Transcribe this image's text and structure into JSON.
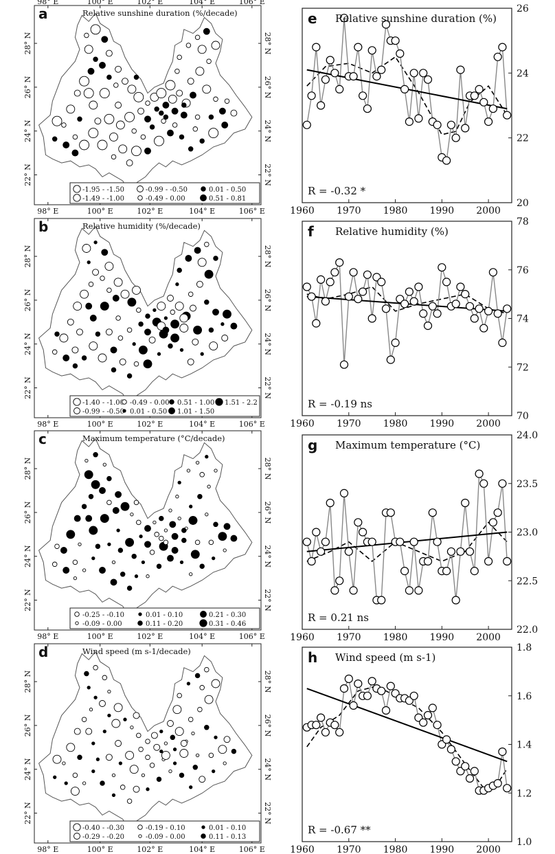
{
  "map_axes": {
    "lon_ticks": [
      "98° E",
      "100° E",
      "102° E",
      "104° E",
      "106° E"
    ],
    "lat_ticks": [
      "22° N",
      "24° N",
      "26° N",
      "28° N"
    ]
  },
  "map_panels": [
    {
      "letter": "a",
      "title": "Relative sunshine duration (%/decade)",
      "legend": [
        [
          "-1.95 - -1.50",
          "-0.99 - -0.50",
          "0.01 - 0.50"
        ],
        [
          "-1.49 - -1.00",
          "-0.49 - 0.00",
          "0.51 - 0.81"
        ]
      ],
      "symbols": [
        [
          {
            "fill": "open",
            "size": 5
          },
          {
            "fill": "open",
            "size": 3
          },
          {
            "fill": "solid",
            "size": 2
          }
        ],
        [
          {
            "fill": "open",
            "size": 4
          },
          {
            "fill": "open",
            "size": 2
          },
          {
            "fill": "solid",
            "size": 3
          }
        ]
      ]
    },
    {
      "letter": "b",
      "title": "Relative humidity (%/decade)",
      "legend": [
        [
          "-1.40 - -1.00",
          "-0.49 - 0.00",
          "0.51 - 1.00",
          "1.51 - 2.2"
        ],
        [
          "-0.99 - -0.50",
          "0.01 - 0.50",
          "1.01 - 1.50"
        ]
      ],
      "symbols": [
        [
          {
            "fill": "open",
            "size": 4
          },
          {
            "fill": "open",
            "size": 2
          },
          {
            "fill": "solid",
            "size": 2
          },
          {
            "fill": "solid",
            "size": 4
          }
        ],
        [
          {
            "fill": "open",
            "size": 3
          },
          {
            "fill": "solid",
            "size": 1
          },
          {
            "fill": "solid",
            "size": 3
          }
        ]
      ]
    },
    {
      "letter": "c",
      "title": "Maximum temperature (°C/decade)",
      "legend": [
        [
          "-0.25 - -0.10",
          "0.01 - 0.10",
          "0.21 - 0.30"
        ],
        [
          "-0.09 - 0.00",
          "0.11 - 0.20",
          "0.31 - 0.46"
        ]
      ],
      "symbols": [
        [
          {
            "fill": "open",
            "size": 2
          },
          {
            "fill": "solid",
            "size": 1
          },
          {
            "fill": "solid",
            "size": 3
          }
        ],
        [
          {
            "fill": "open",
            "size": 1
          },
          {
            "fill": "solid",
            "size": 2
          },
          {
            "fill": "solid",
            "size": 4
          }
        ]
      ]
    },
    {
      "letter": "d",
      "title": "Wind speed (m s-1/decade)",
      "legend": [
        [
          "-0.40 - -0.30",
          "-0.19 - 0.10",
          "0.01 - 0.10"
        ],
        [
          "-0.29 - -0.20",
          "-0.09 - 0.00",
          "0.11 - 0.13"
        ]
      ],
      "symbols": [
        [
          {
            "fill": "open",
            "size": 4
          },
          {
            "fill": "open",
            "size": 2
          },
          {
            "fill": "solid",
            "size": 1
          }
        ],
        [
          {
            "fill": "open",
            "size": 3
          },
          {
            "fill": "open",
            "size": 1
          },
          {
            "fill": "solid",
            "size": 2
          }
        ]
      ]
    }
  ],
  "chart_data": [
    {
      "panel": "e",
      "type": "line",
      "title": "Relative sunshine duration (%)",
      "xlim": [
        1960,
        2005
      ],
      "ylim": [
        20,
        26
      ],
      "xticks": [
        1960,
        1970,
        1980,
        1990,
        2000
      ],
      "yticks": [
        20,
        22,
        24,
        26
      ],
      "r_text": "R = -0.32 *",
      "x": [
        1961,
        1962,
        1963,
        1964,
        1965,
        1966,
        1967,
        1968,
        1969,
        1970,
        1971,
        1972,
        1973,
        1974,
        1975,
        1976,
        1977,
        1978,
        1979,
        1980,
        1981,
        1982,
        1983,
        1984,
        1985,
        1986,
        1987,
        1988,
        1989,
        1990,
        1991,
        1992,
        1993,
        1994,
        1995,
        1996,
        1997,
        1998,
        1999,
        2000,
        2001,
        2002,
        2003,
        2004
      ],
      "series": [
        {
          "values": [
            22.4,
            23.3,
            24.8,
            23.0,
            23.8,
            24.4,
            24.0,
            23.5,
            25.7,
            23.9,
            23.9,
            24.8,
            23.3,
            22.9,
            24.7,
            23.9,
            24.1,
            25.5,
            25.0,
            25.0,
            24.6,
            23.5,
            22.5,
            24.0,
            22.6,
            24.0,
            23.8,
            22.5,
            22.4,
            21.4,
            21.3,
            22.4,
            22.0,
            24.1,
            22.3,
            23.3,
            23.3,
            23.5,
            23.1,
            22.5,
            22.9,
            24.5,
            24.8,
            22.7
          ]
        }
      ],
      "trend": {
        "x": [
          1961,
          2004
        ],
        "y": [
          24.1,
          22.9
        ]
      },
      "smooth": {
        "x": [
          1961,
          1965,
          1970,
          1975,
          1980,
          1985,
          1990,
          1993,
          1996,
          2000,
          2004
        ],
        "y": [
          23.6,
          24.2,
          24.3,
          24.0,
          24.5,
          23.4,
          22.1,
          22.2,
          23.1,
          23.6,
          22.7
        ]
      }
    },
    {
      "panel": "f",
      "type": "line",
      "title": "Relative humidity (%)",
      "xlim": [
        1960,
        2005
      ],
      "ylim": [
        70,
        78
      ],
      "xticks": [
        1960,
        1970,
        1980,
        1990,
        2000
      ],
      "yticks": [
        70,
        72,
        74,
        76,
        78
      ],
      "r_text": "R = -0.19 ns",
      "x": [
        1961,
        1962,
        1963,
        1964,
        1965,
        1966,
        1967,
        1968,
        1969,
        1970,
        1971,
        1972,
        1973,
        1974,
        1975,
        1976,
        1977,
        1978,
        1979,
        1980,
        1981,
        1982,
        1983,
        1984,
        1985,
        1986,
        1987,
        1988,
        1989,
        1990,
        1991,
        1992,
        1993,
        1994,
        1995,
        1996,
        1997,
        1998,
        1999,
        2000,
        2001,
        2002,
        2003,
        2004
      ],
      "series": [
        {
          "values": [
            75.3,
            74.9,
            73.8,
            75.6,
            74.7,
            75.5,
            75.9,
            76.3,
            72.1,
            74.9,
            75.9,
            74.8,
            75.1,
            75.8,
            74.0,
            75.7,
            75.5,
            74.4,
            72.3,
            73.0,
            74.8,
            74.6,
            75.1,
            74.7,
            75.3,
            74.2,
            73.7,
            74.5,
            74.2,
            76.1,
            75.5,
            74.5,
            74.6,
            75.3,
            75.0,
            74.5,
            74.0,
            74.4,
            73.6,
            74.3,
            75.9,
            74.2,
            73.0,
            74.4
          ]
        }
      ],
      "trend": {
        "x": [
          1961,
          2004
        ],
        "y": [
          74.9,
          74.3
        ]
      },
      "smooth": {
        "x": [
          1961,
          1965,
          1970,
          1975,
          1980,
          1985,
          1990,
          1995,
          2000,
          2004
        ],
        "y": [
          75.0,
          74.8,
          75.0,
          75.3,
          74.3,
          74.6,
          74.8,
          75.0,
          74.4,
          74.2
        ]
      }
    },
    {
      "panel": "g",
      "type": "line",
      "title": "Maximum temperature (°C)",
      "xlim": [
        1960,
        2005
      ],
      "ylim": [
        22.0,
        24.0
      ],
      "xticks": [
        1960,
        1970,
        1980,
        1990,
        2000
      ],
      "yticks": [
        22.0,
        22.5,
        23.0,
        23.5,
        24.0
      ],
      "r_text": "R = 0.21 ns",
      "x": [
        1961,
        1962,
        1963,
        1964,
        1965,
        1966,
        1967,
        1968,
        1969,
        1970,
        1971,
        1972,
        1973,
        1974,
        1975,
        1976,
        1977,
        1978,
        1979,
        1980,
        1981,
        1982,
        1983,
        1984,
        1985,
        1986,
        1987,
        1988,
        1989,
        1990,
        1991,
        1992,
        1993,
        1994,
        1995,
        1996,
        1997,
        1998,
        1999,
        2000,
        2001,
        2002,
        2003,
        2004
      ],
      "series": [
        {
          "values": [
            22.9,
            22.7,
            23.0,
            22.8,
            22.9,
            23.3,
            22.4,
            22.5,
            23.4,
            22.8,
            22.4,
            23.1,
            23.0,
            22.9,
            22.9,
            22.3,
            22.3,
            23.2,
            23.2,
            22.9,
            22.9,
            22.6,
            22.4,
            22.9,
            22.4,
            22.7,
            22.7,
            23.2,
            22.9,
            22.6,
            22.6,
            22.8,
            22.3,
            22.8,
            23.3,
            22.8,
            22.6,
            23.6,
            23.5,
            22.7,
            23.1,
            23.2,
            23.5,
            22.7
          ]
        }
      ],
      "trend": {
        "x": [
          1961,
          2004
        ],
        "y": [
          22.8,
          23.0
        ]
      },
      "smooth": {
        "x": [
          1961,
          1966,
          1970,
          1975,
          1980,
          1985,
          1990,
          1995,
          2000,
          2004
        ],
        "y": [
          22.7,
          22.8,
          22.9,
          22.7,
          22.9,
          22.8,
          22.7,
          22.8,
          23.1,
          22.9
        ]
      }
    },
    {
      "panel": "h",
      "type": "line",
      "title": "Wind speed (m s-1)",
      "xlim": [
        1960,
        2005
      ],
      "ylim": [
        1.0,
        1.8
      ],
      "xticks": [
        1960,
        1970,
        1980,
        1990,
        2000
      ],
      "yticks": [
        1.0,
        1.2,
        1.4,
        1.6,
        1.8
      ],
      "r_text": "R = -0.67 **",
      "x": [
        1961,
        1962,
        1963,
        1964,
        1965,
        1966,
        1967,
        1968,
        1969,
        1970,
        1971,
        1972,
        1973,
        1974,
        1975,
        1976,
        1977,
        1978,
        1979,
        1980,
        1981,
        1982,
        1983,
        1984,
        1985,
        1986,
        1987,
        1988,
        1989,
        1990,
        1991,
        1992,
        1993,
        1994,
        1995,
        1996,
        1997,
        1998,
        1999,
        2000,
        2001,
        2002,
        2003,
        2004
      ],
      "series": [
        {
          "values": [
            1.47,
            1.48,
            1.48,
            1.51,
            1.45,
            1.49,
            1.48,
            1.45,
            1.63,
            1.67,
            1.56,
            1.65,
            1.6,
            1.6,
            1.66,
            1.63,
            1.62,
            1.54,
            1.64,
            1.61,
            1.59,
            1.59,
            1.58,
            1.6,
            1.51,
            1.49,
            1.52,
            1.55,
            1.48,
            1.4,
            1.42,
            1.38,
            1.33,
            1.29,
            1.31,
            1.26,
            1.29,
            1.21,
            1.21,
            1.22,
            1.23,
            1.24,
            1.37,
            1.22
          ]
        }
      ],
      "trend": {
        "x": [
          1961,
          2004
        ],
        "y": [
          1.63,
          1.33
        ]
      },
      "smooth": {
        "x": [
          1961,
          1964,
          1968,
          1972,
          1976,
          1980,
          1985,
          1990,
          1995,
          1999,
          2002,
          2004
        ],
        "y": [
          1.39,
          1.47,
          1.52,
          1.62,
          1.64,
          1.6,
          1.55,
          1.45,
          1.32,
          1.22,
          1.24,
          1.3
        ]
      }
    }
  ]
}
